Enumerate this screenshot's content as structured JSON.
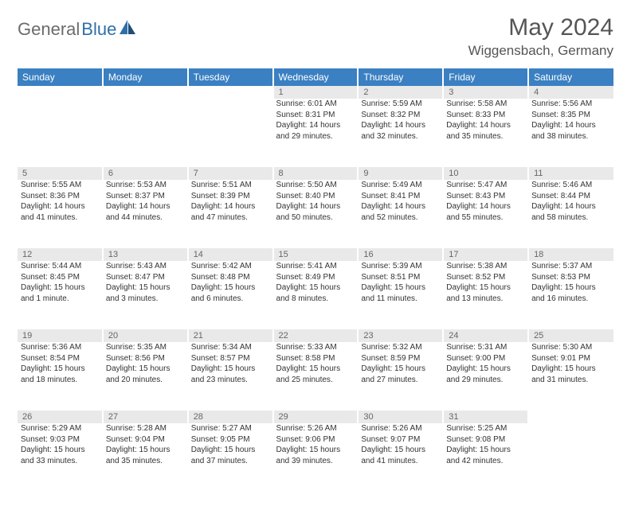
{
  "brand": {
    "part1": "General",
    "part2": "Blue"
  },
  "title": "May 2024",
  "location": "Wiggensbach, Germany",
  "colors": {
    "header_bg": "#3a80c2",
    "header_text": "#ffffff",
    "daynum_bg": "#e9e9e9",
    "daynum_text": "#666666",
    "body_text": "#333333",
    "title_text": "#555555",
    "brand_gray": "#6b6b6b",
    "brand_blue": "#2f6fa8"
  },
  "weekdays": [
    "Sunday",
    "Monday",
    "Tuesday",
    "Wednesday",
    "Thursday",
    "Friday",
    "Saturday"
  ],
  "weeks": [
    [
      null,
      null,
      null,
      {
        "num": "1",
        "sunrise": "Sunrise: 6:01 AM",
        "sunset": "Sunset: 8:31 PM",
        "daylight": "Daylight: 14 hours and 29 minutes."
      },
      {
        "num": "2",
        "sunrise": "Sunrise: 5:59 AM",
        "sunset": "Sunset: 8:32 PM",
        "daylight": "Daylight: 14 hours and 32 minutes."
      },
      {
        "num": "3",
        "sunrise": "Sunrise: 5:58 AM",
        "sunset": "Sunset: 8:33 PM",
        "daylight": "Daylight: 14 hours and 35 minutes."
      },
      {
        "num": "4",
        "sunrise": "Sunrise: 5:56 AM",
        "sunset": "Sunset: 8:35 PM",
        "daylight": "Daylight: 14 hours and 38 minutes."
      }
    ],
    [
      {
        "num": "5",
        "sunrise": "Sunrise: 5:55 AM",
        "sunset": "Sunset: 8:36 PM",
        "daylight": "Daylight: 14 hours and 41 minutes."
      },
      {
        "num": "6",
        "sunrise": "Sunrise: 5:53 AM",
        "sunset": "Sunset: 8:37 PM",
        "daylight": "Daylight: 14 hours and 44 minutes."
      },
      {
        "num": "7",
        "sunrise": "Sunrise: 5:51 AM",
        "sunset": "Sunset: 8:39 PM",
        "daylight": "Daylight: 14 hours and 47 minutes."
      },
      {
        "num": "8",
        "sunrise": "Sunrise: 5:50 AM",
        "sunset": "Sunset: 8:40 PM",
        "daylight": "Daylight: 14 hours and 50 minutes."
      },
      {
        "num": "9",
        "sunrise": "Sunrise: 5:49 AM",
        "sunset": "Sunset: 8:41 PM",
        "daylight": "Daylight: 14 hours and 52 minutes."
      },
      {
        "num": "10",
        "sunrise": "Sunrise: 5:47 AM",
        "sunset": "Sunset: 8:43 PM",
        "daylight": "Daylight: 14 hours and 55 minutes."
      },
      {
        "num": "11",
        "sunrise": "Sunrise: 5:46 AM",
        "sunset": "Sunset: 8:44 PM",
        "daylight": "Daylight: 14 hours and 58 minutes."
      }
    ],
    [
      {
        "num": "12",
        "sunrise": "Sunrise: 5:44 AM",
        "sunset": "Sunset: 8:45 PM",
        "daylight": "Daylight: 15 hours and 1 minute."
      },
      {
        "num": "13",
        "sunrise": "Sunrise: 5:43 AM",
        "sunset": "Sunset: 8:47 PM",
        "daylight": "Daylight: 15 hours and 3 minutes."
      },
      {
        "num": "14",
        "sunrise": "Sunrise: 5:42 AM",
        "sunset": "Sunset: 8:48 PM",
        "daylight": "Daylight: 15 hours and 6 minutes."
      },
      {
        "num": "15",
        "sunrise": "Sunrise: 5:41 AM",
        "sunset": "Sunset: 8:49 PM",
        "daylight": "Daylight: 15 hours and 8 minutes."
      },
      {
        "num": "16",
        "sunrise": "Sunrise: 5:39 AM",
        "sunset": "Sunset: 8:51 PM",
        "daylight": "Daylight: 15 hours and 11 minutes."
      },
      {
        "num": "17",
        "sunrise": "Sunrise: 5:38 AM",
        "sunset": "Sunset: 8:52 PM",
        "daylight": "Daylight: 15 hours and 13 minutes."
      },
      {
        "num": "18",
        "sunrise": "Sunrise: 5:37 AM",
        "sunset": "Sunset: 8:53 PM",
        "daylight": "Daylight: 15 hours and 16 minutes."
      }
    ],
    [
      {
        "num": "19",
        "sunrise": "Sunrise: 5:36 AM",
        "sunset": "Sunset: 8:54 PM",
        "daylight": "Daylight: 15 hours and 18 minutes."
      },
      {
        "num": "20",
        "sunrise": "Sunrise: 5:35 AM",
        "sunset": "Sunset: 8:56 PM",
        "daylight": "Daylight: 15 hours and 20 minutes."
      },
      {
        "num": "21",
        "sunrise": "Sunrise: 5:34 AM",
        "sunset": "Sunset: 8:57 PM",
        "daylight": "Daylight: 15 hours and 23 minutes."
      },
      {
        "num": "22",
        "sunrise": "Sunrise: 5:33 AM",
        "sunset": "Sunset: 8:58 PM",
        "daylight": "Daylight: 15 hours and 25 minutes."
      },
      {
        "num": "23",
        "sunrise": "Sunrise: 5:32 AM",
        "sunset": "Sunset: 8:59 PM",
        "daylight": "Daylight: 15 hours and 27 minutes."
      },
      {
        "num": "24",
        "sunrise": "Sunrise: 5:31 AM",
        "sunset": "Sunset: 9:00 PM",
        "daylight": "Daylight: 15 hours and 29 minutes."
      },
      {
        "num": "25",
        "sunrise": "Sunrise: 5:30 AM",
        "sunset": "Sunset: 9:01 PM",
        "daylight": "Daylight: 15 hours and 31 minutes."
      }
    ],
    [
      {
        "num": "26",
        "sunrise": "Sunrise: 5:29 AM",
        "sunset": "Sunset: 9:03 PM",
        "daylight": "Daylight: 15 hours and 33 minutes."
      },
      {
        "num": "27",
        "sunrise": "Sunrise: 5:28 AM",
        "sunset": "Sunset: 9:04 PM",
        "daylight": "Daylight: 15 hours and 35 minutes."
      },
      {
        "num": "28",
        "sunrise": "Sunrise: 5:27 AM",
        "sunset": "Sunset: 9:05 PM",
        "daylight": "Daylight: 15 hours and 37 minutes."
      },
      {
        "num": "29",
        "sunrise": "Sunrise: 5:26 AM",
        "sunset": "Sunset: 9:06 PM",
        "daylight": "Daylight: 15 hours and 39 minutes."
      },
      {
        "num": "30",
        "sunrise": "Sunrise: 5:26 AM",
        "sunset": "Sunset: 9:07 PM",
        "daylight": "Daylight: 15 hours and 41 minutes."
      },
      {
        "num": "31",
        "sunrise": "Sunrise: 5:25 AM",
        "sunset": "Sunset: 9:08 PM",
        "daylight": "Daylight: 15 hours and 42 minutes."
      },
      null
    ]
  ]
}
